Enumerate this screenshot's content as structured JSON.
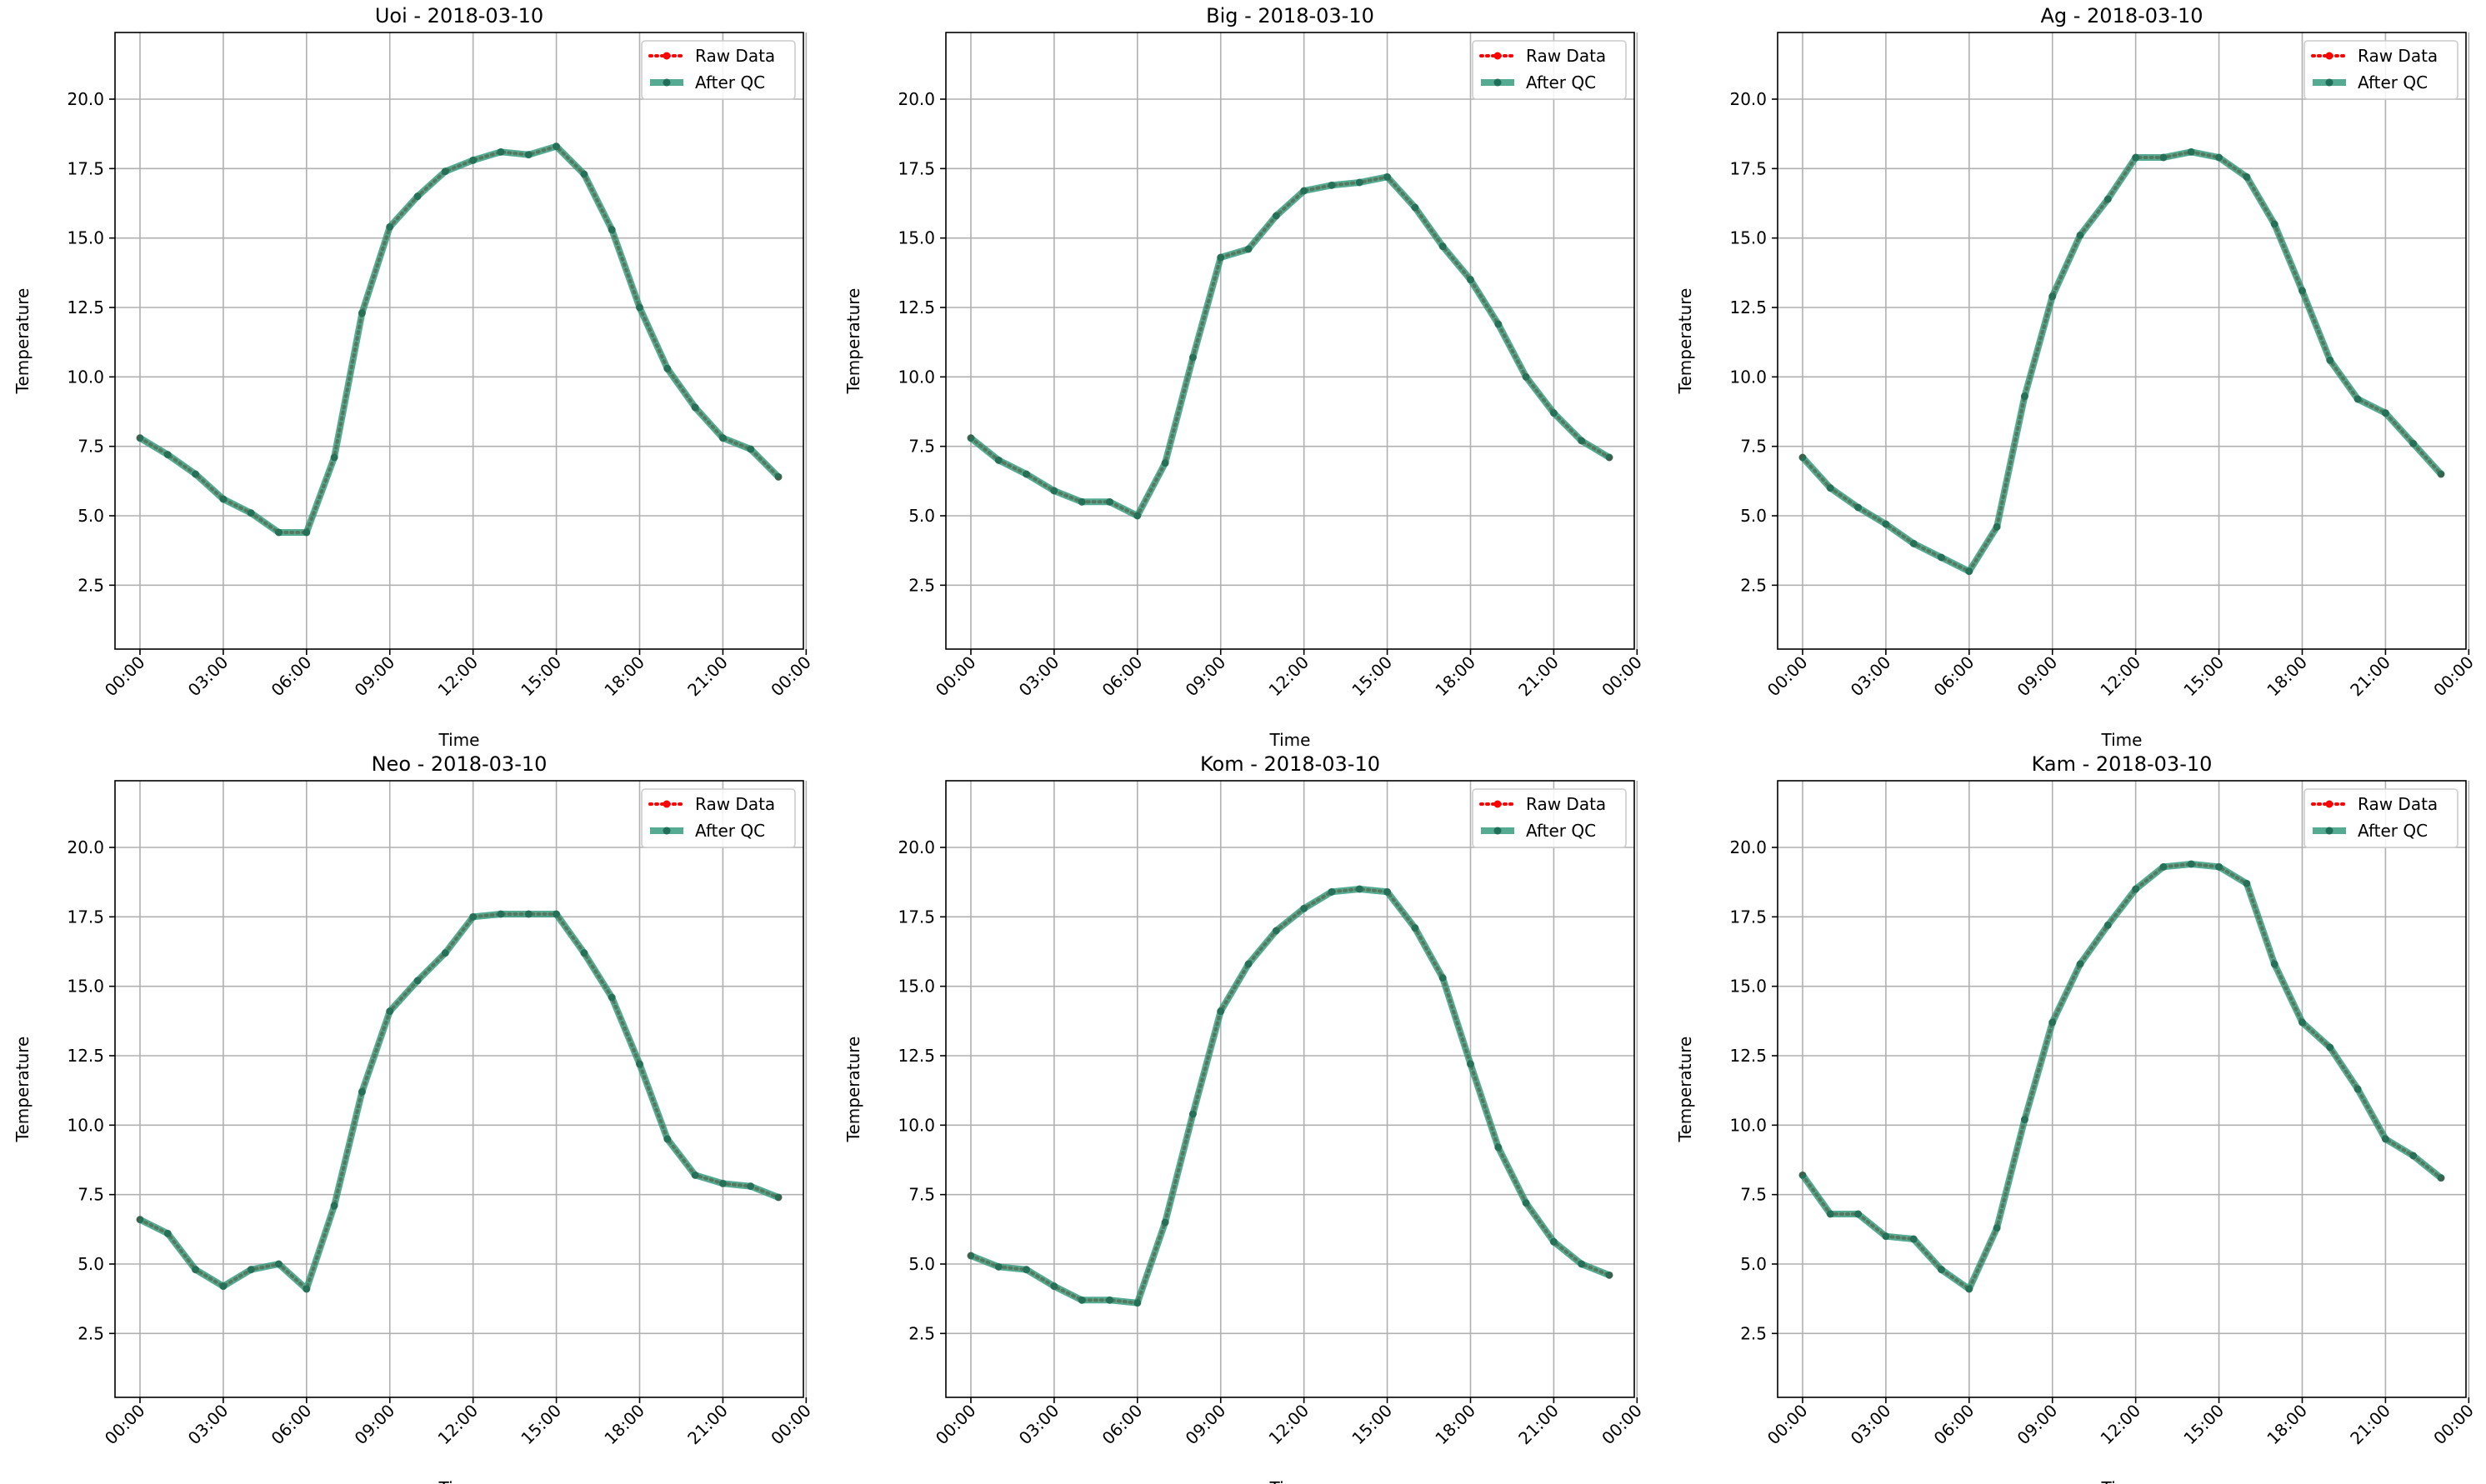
{
  "chart_data": [
    {
      "type": "line",
      "title": "Uoi - 2018-03-10",
      "xlabel": "Time",
      "ylabel": "Temperature",
      "ylim": [
        0.2,
        22.4
      ],
      "xlim": [
        -0.9,
        23.9
      ],
      "x_ticks": [
        0,
        3,
        6,
        9,
        12,
        15,
        18,
        21,
        24
      ],
      "x_tick_labels": [
        "00:00",
        "03:00",
        "06:00",
        "09:00",
        "12:00",
        "15:00",
        "18:00",
        "21:00",
        "00:00"
      ],
      "y_ticks": [
        2.5,
        5.0,
        7.5,
        10.0,
        12.5,
        15.0,
        17.5,
        20.0
      ],
      "y_tick_labels": [
        "2.5",
        "5.0",
        "7.5",
        "10.0",
        "12.5",
        "15.0",
        "17.5",
        "20.0"
      ],
      "grid": true,
      "legend_position": "upper right",
      "x": [
        0,
        1,
        2,
        3,
        4,
        5,
        6,
        7,
        8,
        9,
        10,
        11,
        12,
        13,
        14,
        15,
        16,
        17,
        18,
        19,
        20,
        21,
        22,
        23
      ],
      "series": [
        {
          "name": "Raw Data",
          "style": "dotted",
          "color": "#ff0000",
          "values": [
            7.8,
            7.2,
            6.5,
            5.6,
            5.1,
            4.4,
            4.4,
            7.1,
            12.3,
            15.4,
            16.5,
            17.4,
            17.8,
            18.1,
            18.0,
            18.3,
            17.3,
            15.3,
            12.5,
            10.3,
            8.9,
            7.8,
            7.4,
            6.4
          ]
        },
        {
          "name": "After QC",
          "style": "solid",
          "color": "#2a9677",
          "values": [
            7.8,
            7.2,
            6.5,
            5.6,
            5.1,
            4.4,
            4.4,
            7.1,
            12.3,
            15.4,
            16.5,
            17.4,
            17.8,
            18.1,
            18.0,
            18.3,
            17.3,
            15.3,
            12.5,
            10.3,
            8.9,
            7.8,
            7.4,
            6.4
          ]
        }
      ]
    },
    {
      "type": "line",
      "title": "Big - 2018-03-10",
      "xlabel": "Time",
      "ylabel": "Temperature",
      "ylim": [
        0.2,
        22.4
      ],
      "xlim": [
        -0.9,
        23.9
      ],
      "x_ticks": [
        0,
        3,
        6,
        9,
        12,
        15,
        18,
        21,
        24
      ],
      "x_tick_labels": [
        "00:00",
        "03:00",
        "06:00",
        "09:00",
        "12:00",
        "15:00",
        "18:00",
        "21:00",
        "00:00"
      ],
      "y_ticks": [
        2.5,
        5.0,
        7.5,
        10.0,
        12.5,
        15.0,
        17.5,
        20.0
      ],
      "y_tick_labels": [
        "2.5",
        "5.0",
        "7.5",
        "10.0",
        "12.5",
        "15.0",
        "17.5",
        "20.0"
      ],
      "grid": true,
      "legend_position": "upper right",
      "x": [
        0,
        1,
        2,
        3,
        4,
        5,
        6,
        7,
        8,
        9,
        10,
        11,
        12,
        13,
        14,
        15,
        16,
        17,
        18,
        19,
        20,
        21,
        22,
        23
      ],
      "series": [
        {
          "name": "Raw Data",
          "style": "dotted",
          "color": "#ff0000",
          "values": [
            7.8,
            7.0,
            6.5,
            5.9,
            5.5,
            5.5,
            5.0,
            6.9,
            10.7,
            14.3,
            14.6,
            15.8,
            16.7,
            16.9,
            17.0,
            17.2,
            16.1,
            14.7,
            13.5,
            11.9,
            10.0,
            8.7,
            7.7,
            7.1
          ]
        },
        {
          "name": "After QC",
          "style": "solid",
          "color": "#2a9677",
          "values": [
            7.8,
            7.0,
            6.5,
            5.9,
            5.5,
            5.5,
            5.0,
            6.9,
            10.7,
            14.3,
            14.6,
            15.8,
            16.7,
            16.9,
            17.0,
            17.2,
            16.1,
            14.7,
            13.5,
            11.9,
            10.0,
            8.7,
            7.7,
            7.1
          ]
        }
      ]
    },
    {
      "type": "line",
      "title": "Ag - 2018-03-10",
      "xlabel": "Time",
      "ylabel": "Temperature",
      "ylim": [
        0.2,
        22.4
      ],
      "xlim": [
        -0.9,
        23.9
      ],
      "x_ticks": [
        0,
        3,
        6,
        9,
        12,
        15,
        18,
        21,
        24
      ],
      "x_tick_labels": [
        "00:00",
        "03:00",
        "06:00",
        "09:00",
        "12:00",
        "15:00",
        "18:00",
        "21:00",
        "00:00"
      ],
      "y_ticks": [
        2.5,
        5.0,
        7.5,
        10.0,
        12.5,
        15.0,
        17.5,
        20.0
      ],
      "y_tick_labels": [
        "2.5",
        "5.0",
        "7.5",
        "10.0",
        "12.5",
        "15.0",
        "17.5",
        "20.0"
      ],
      "grid": true,
      "legend_position": "upper right",
      "x": [
        0,
        1,
        2,
        3,
        4,
        5,
        6,
        7,
        8,
        9,
        10,
        11,
        12,
        13,
        14,
        15,
        16,
        17,
        18,
        19,
        20,
        21,
        22,
        23
      ],
      "series": [
        {
          "name": "Raw Data",
          "style": "dotted",
          "color": "#ff0000",
          "values": [
            7.1,
            6.0,
            5.3,
            4.7,
            4.0,
            3.5,
            3.0,
            4.6,
            9.3,
            12.9,
            15.1,
            16.4,
            17.9,
            17.9,
            18.1,
            17.9,
            17.2,
            15.5,
            13.1,
            10.6,
            9.2,
            8.7,
            7.6,
            6.5
          ]
        },
        {
          "name": "After QC",
          "style": "solid",
          "color": "#2a9677",
          "values": [
            7.1,
            6.0,
            5.3,
            4.7,
            4.0,
            3.5,
            3.0,
            4.6,
            9.3,
            12.9,
            15.1,
            16.4,
            17.9,
            17.9,
            18.1,
            17.9,
            17.2,
            15.5,
            13.1,
            10.6,
            9.2,
            8.7,
            7.6,
            6.5
          ]
        }
      ]
    },
    {
      "type": "line",
      "title": "Neo - 2018-03-10",
      "xlabel": "Time",
      "ylabel": "Temperature",
      "ylim": [
        0.2,
        22.4
      ],
      "xlim": [
        -0.9,
        23.9
      ],
      "x_ticks": [
        0,
        3,
        6,
        9,
        12,
        15,
        18,
        21,
        24
      ],
      "x_tick_labels": [
        "00:00",
        "03:00",
        "06:00",
        "09:00",
        "12:00",
        "15:00",
        "18:00",
        "21:00",
        "00:00"
      ],
      "y_ticks": [
        2.5,
        5.0,
        7.5,
        10.0,
        12.5,
        15.0,
        17.5,
        20.0
      ],
      "y_tick_labels": [
        "2.5",
        "5.0",
        "7.5",
        "10.0",
        "12.5",
        "15.0",
        "17.5",
        "20.0"
      ],
      "grid": true,
      "legend_position": "upper right",
      "x": [
        0,
        1,
        2,
        3,
        4,
        5,
        6,
        7,
        8,
        9,
        10,
        11,
        12,
        13,
        14,
        15,
        16,
        17,
        18,
        19,
        20,
        21,
        22,
        23
      ],
      "series": [
        {
          "name": "Raw Data",
          "style": "dotted",
          "color": "#ff0000",
          "values": [
            6.6,
            6.1,
            4.8,
            4.2,
            4.8,
            5.0,
            4.1,
            7.1,
            11.2,
            14.1,
            15.2,
            16.2,
            17.5,
            17.6,
            17.6,
            17.6,
            16.2,
            14.6,
            12.2,
            9.5,
            8.2,
            7.9,
            7.8,
            7.4
          ]
        },
        {
          "name": "After QC",
          "style": "solid",
          "color": "#2a9677",
          "values": [
            6.6,
            6.1,
            4.8,
            4.2,
            4.8,
            5.0,
            4.1,
            7.1,
            11.2,
            14.1,
            15.2,
            16.2,
            17.5,
            17.6,
            17.6,
            17.6,
            16.2,
            14.6,
            12.2,
            9.5,
            8.2,
            7.9,
            7.8,
            7.4
          ]
        }
      ]
    },
    {
      "type": "line",
      "title": "Kom - 2018-03-10",
      "xlabel": "Time",
      "ylabel": "Temperature",
      "ylim": [
        0.2,
        22.4
      ],
      "xlim": [
        -0.9,
        23.9
      ],
      "x_ticks": [
        0,
        3,
        6,
        9,
        12,
        15,
        18,
        21,
        24
      ],
      "x_tick_labels": [
        "00:00",
        "03:00",
        "06:00",
        "09:00",
        "12:00",
        "15:00",
        "18:00",
        "21:00",
        "00:00"
      ],
      "y_ticks": [
        2.5,
        5.0,
        7.5,
        10.0,
        12.5,
        15.0,
        17.5,
        20.0
      ],
      "y_tick_labels": [
        "2.5",
        "5.0",
        "7.5",
        "10.0",
        "12.5",
        "15.0",
        "17.5",
        "20.0"
      ],
      "grid": true,
      "legend_position": "upper right",
      "x": [
        0,
        1,
        2,
        3,
        4,
        5,
        6,
        7,
        8,
        9,
        10,
        11,
        12,
        13,
        14,
        15,
        16,
        17,
        18,
        19,
        20,
        21,
        22,
        23
      ],
      "series": [
        {
          "name": "Raw Data",
          "style": "dotted",
          "color": "#ff0000",
          "values": [
            5.3,
            4.9,
            4.8,
            4.2,
            3.7,
            3.7,
            3.6,
            6.5,
            10.4,
            14.1,
            15.8,
            17.0,
            17.8,
            18.4,
            18.5,
            18.4,
            17.1,
            15.3,
            12.2,
            9.2,
            7.2,
            5.8,
            5.0,
            4.6
          ]
        },
        {
          "name": "After QC",
          "style": "solid",
          "color": "#2a9677",
          "values": [
            5.3,
            4.9,
            4.8,
            4.2,
            3.7,
            3.7,
            3.6,
            6.5,
            10.4,
            14.1,
            15.8,
            17.0,
            17.8,
            18.4,
            18.5,
            18.4,
            17.1,
            15.3,
            12.2,
            9.2,
            7.2,
            5.8,
            5.0,
            4.6
          ]
        }
      ]
    },
    {
      "type": "line",
      "title": "Kam - 2018-03-10",
      "xlabel": "Time",
      "ylabel": "Temperature",
      "ylim": [
        0.2,
        22.4
      ],
      "xlim": [
        -0.9,
        23.9
      ],
      "x_ticks": [
        0,
        3,
        6,
        9,
        12,
        15,
        18,
        21,
        24
      ],
      "x_tick_labels": [
        "00:00",
        "03:00",
        "06:00",
        "09:00",
        "12:00",
        "15:00",
        "18:00",
        "21:00",
        "00:00"
      ],
      "y_ticks": [
        2.5,
        5.0,
        7.5,
        10.0,
        12.5,
        15.0,
        17.5,
        20.0
      ],
      "y_tick_labels": [
        "2.5",
        "5.0",
        "7.5",
        "10.0",
        "12.5",
        "15.0",
        "17.5",
        "20.0"
      ],
      "grid": true,
      "legend_position": "upper right",
      "x": [
        0,
        1,
        2,
        3,
        4,
        5,
        6,
        7,
        8,
        9,
        10,
        11,
        12,
        13,
        14,
        15,
        16,
        17,
        18,
        19,
        20,
        21,
        22,
        23
      ],
      "series": [
        {
          "name": "Raw Data",
          "style": "dotted",
          "color": "#ff0000",
          "values": [
            8.2,
            6.8,
            6.8,
            6.0,
            5.9,
            4.8,
            4.1,
            6.3,
            10.2,
            13.7,
            15.8,
            17.2,
            18.5,
            19.3,
            19.4,
            19.3,
            18.7,
            15.8,
            13.7,
            12.8,
            11.3,
            9.5,
            8.9,
            8.1
          ]
        },
        {
          "name": "After QC",
          "style": "solid",
          "color": "#2a9677",
          "values": [
            8.2,
            6.8,
            6.8,
            6.0,
            5.9,
            4.8,
            4.1,
            6.3,
            10.2,
            13.7,
            15.8,
            17.2,
            18.5,
            19.3,
            19.4,
            19.3,
            18.7,
            15.8,
            13.7,
            12.8,
            11.3,
            9.5,
            8.9,
            8.1
          ]
        }
      ]
    }
  ]
}
